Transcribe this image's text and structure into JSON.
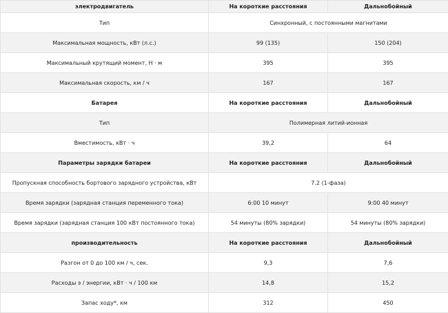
{
  "sections": [
    {
      "header": [
        "электродвигатель",
        "На короткие расстояния",
        "Дальнобойный"
      ],
      "rows": [
        [
          "Тип",
          "Синхронный, с постоянными магнитами"
        ],
        [
          "Максимальная мощность, кВт (л.с.)",
          "99 (135)",
          "150 (204)"
        ],
        [
          "Максимальный крутящий момент, Н · м",
          "395",
          "395"
        ],
        [
          "Максимальная скорость, км / ч",
          "167",
          "167"
        ]
      ]
    },
    {
      "header": [
        "Батарея",
        "На короткие расстояния",
        "Дальнобойный"
      ],
      "rows": [
        [
          "Тип",
          "Полимерная литий-ионная"
        ],
        [
          "Вместимость, кВт · ч",
          "39,2",
          "64"
        ]
      ]
    },
    {
      "header": [
        "Параметры зарядки батареи",
        "На короткие расстояния",
        "Дальнобойный"
      ],
      "rows": [
        [
          "Пропускная способность бортового зарядного устройства, кВт",
          "7.2 (1-фаза)"
        ],
        [
          "Время зарядки (зарядная станция переменного тока)",
          "6:00 10 минут",
          "9:00 40 минут"
        ],
        [
          "Время зарядки (зарядная станция 100 кВт постоянного тока)",
          "54 минуты (80% зарядки)",
          "54 минуты (80% зарядки)"
        ]
      ]
    },
    {
      "header": [
        "производительность",
        "На короткие расстояния",
        "Дальнобойный"
      ],
      "rows": [
        [
          "Разгон от 0 до 100 км / ч, сек.",
          "9,3",
          "7,6"
        ],
        [
          "Расходы э / энергии, кВт · ч / 100 км",
          "14,8",
          "15,2"
        ],
        [
          "Запас ходу*, км",
          "312",
          "450"
        ]
      ]
    }
  ]
}
